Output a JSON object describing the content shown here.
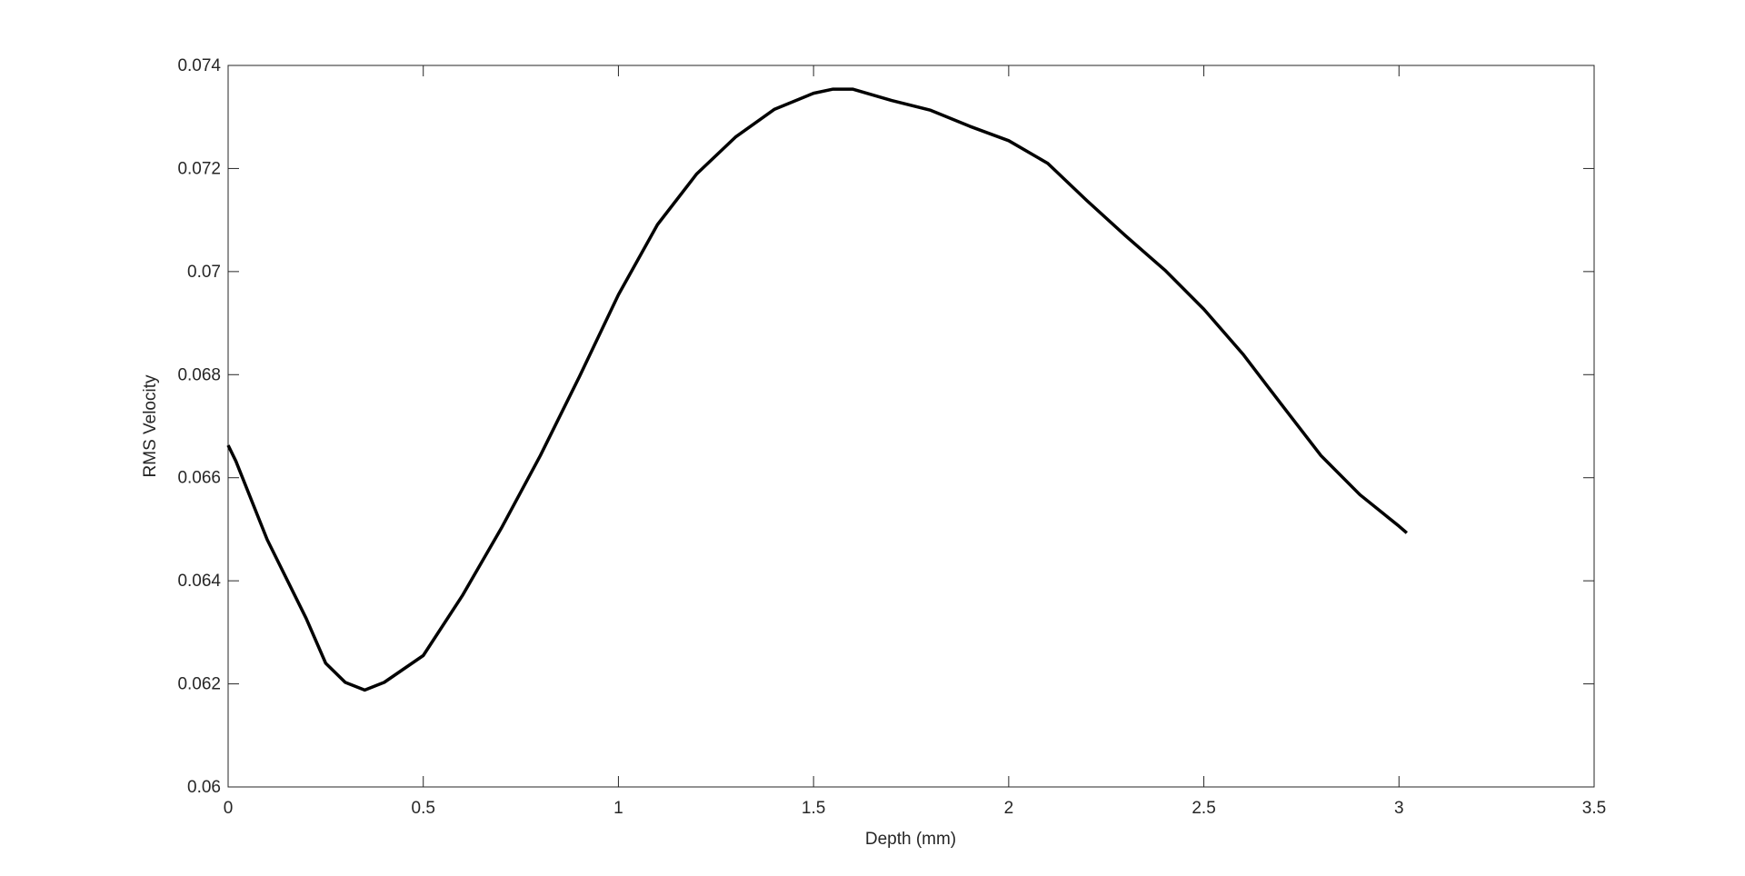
{
  "chart_data": {
    "type": "line",
    "xlabel": "Depth (mm)",
    "ylabel": "RMS Velocity",
    "x": [
      0,
      0.02,
      0.1,
      0.2,
      0.25,
      0.3,
      0.35,
      0.4,
      0.5,
      0.6,
      0.7,
      0.8,
      0.9,
      1.0,
      1.1,
      1.2,
      1.3,
      1.4,
      1.5,
      1.55,
      1.6,
      1.7,
      1.8,
      1.9,
      2.0,
      2.1,
      2.2,
      2.3,
      2.4,
      2.5,
      2.6,
      2.7,
      2.8,
      2.9,
      3.0,
      3.02
    ],
    "values": [
      0.06663,
      0.06632,
      0.0648,
      0.06327,
      0.0624,
      0.06203,
      0.06188,
      0.06203,
      0.06255,
      0.06371,
      0.06502,
      0.06643,
      0.06796,
      0.06955,
      0.07091,
      0.07189,
      0.07261,
      0.07315,
      0.07346,
      0.07354,
      0.07354,
      0.07332,
      0.07313,
      0.07282,
      0.07254,
      0.0721,
      0.07138,
      0.07069,
      0.07003,
      0.06927,
      0.0684,
      0.06741,
      0.06643,
      0.06567,
      0.06506,
      0.06493
    ],
    "color": "#000000",
    "xlim": [
      0,
      3.5
    ],
    "xticks": [
      0,
      0.5,
      1,
      1.5,
      2,
      2.5,
      3,
      3.5
    ],
    "ylim": [
      0.06,
      0.074
    ],
    "yticks": [
      0.06,
      0.062,
      0.064,
      0.066,
      0.068,
      0.07,
      0.072,
      0.074
    ],
    "grid": false
  }
}
